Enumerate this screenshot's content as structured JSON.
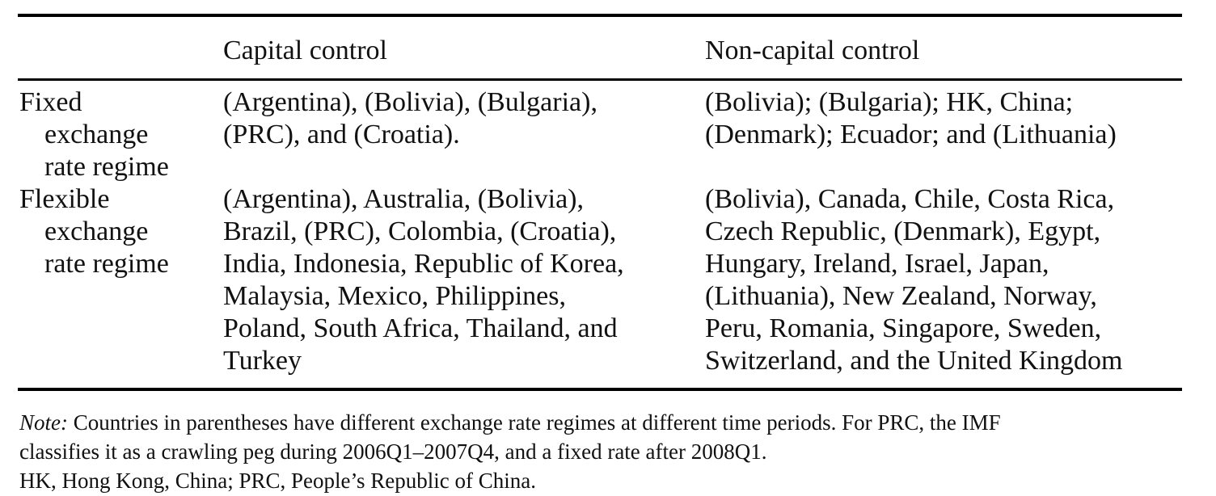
{
  "table": {
    "headers": [
      "",
      "Capital control",
      "Non-capital control"
    ],
    "rows": [
      {
        "label_lines": [
          "Fixed",
          "exchange",
          "rate regime"
        ],
        "capital_control_lines": [
          "(Argentina), (Bolivia), (Bulgaria),",
          "(PRC), and (Croatia)."
        ],
        "non_capital_control_lines": [
          "(Bolivia); (Bulgaria); HK, China;",
          "(Denmark); Ecuador; and (Lithuania)"
        ]
      },
      {
        "label_lines": [
          "Flexible",
          "exchange",
          "rate regime"
        ],
        "capital_control_lines": [
          "(Argentina), Australia, (Bolivia),",
          "Brazil, (PRC), Colombia, (Croatia),",
          "India, Indonesia, Republic of Korea,",
          "Malaysia, Mexico, Philippines,",
          "Poland, South Africa, Thailand, and",
          "Turkey"
        ],
        "non_capital_control_lines": [
          "(Bolivia), Canada, Chile, Costa Rica,",
          "Czech Republic, (Denmark), Egypt,",
          "Hungary, Ireland, Israel, Japan,",
          "(Lithuania), New Zealand, Norway,",
          "Peru, Romania, Singapore, Sweden,",
          "Switzerland, and the United Kingdom"
        ]
      }
    ]
  },
  "notes": {
    "note_label": "Note:",
    "note_line_1": " Countries in parentheses have different exchange rate regimes at different time periods. For PRC, the IMF",
    "note_line_2": "classifies it as a crawling peg during 2006Q1–2007Q4, and a fixed rate after 2008Q1.",
    "abbreviations": "HK, Hong Kong, China; PRC, People’s Republic of China."
  }
}
